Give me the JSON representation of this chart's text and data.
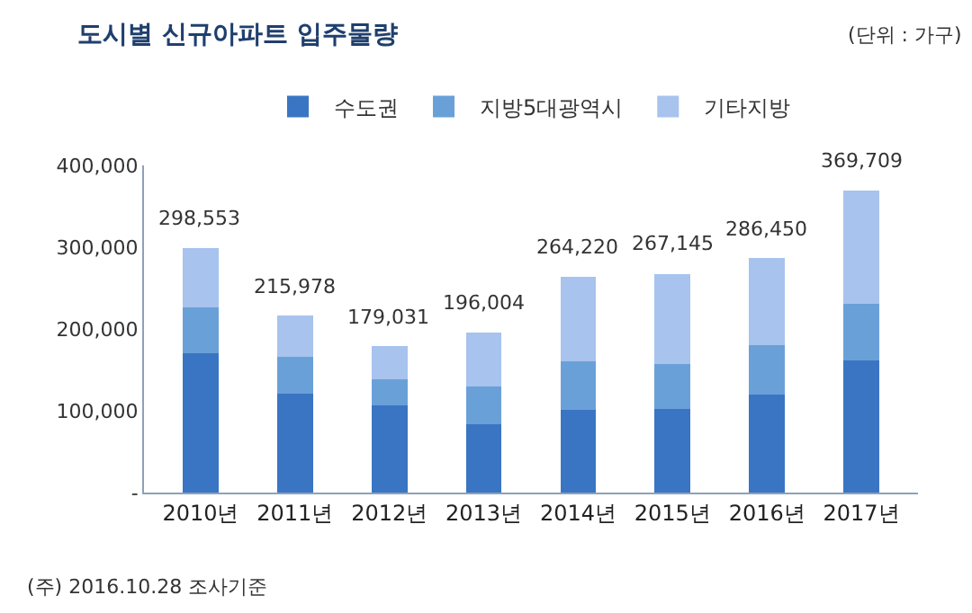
{
  "chart_data": {
    "type": "bar",
    "title": "도시별 신규아파트 입주물량",
    "categories": [
      "2010년",
      "2011년",
      "2012년",
      "2013년",
      "2014년",
      "2015년",
      "2016년",
      "2017년"
    ],
    "stacked": true,
    "series": [
      {
        "name": "수도권",
        "color": "#3a75c4",
        "values": [
          170000,
          121000,
          107000,
          83000,
          101000,
          102000,
          120000,
          162000
        ]
      },
      {
        "name": "지방5대광역시",
        "color": "#6aa0d8",
        "values": [
          56000,
          45000,
          32000,
          47000,
          59000,
          55000,
          60000,
          69000
        ]
      },
      {
        "name": "기타지방",
        "color": "#a7c3ee",
        "values": [
          72553,
          49978,
          40031,
          66004,
          104220,
          110145,
          106450,
          138709
        ]
      }
    ],
    "totals": [
      "298,553",
      "215,978",
      "179,031",
      "196,004",
      "264,220",
      "267,145",
      "286,450",
      "369,709"
    ],
    "ylim": [
      0,
      400000
    ],
    "yticks": [
      {
        "value": 0,
        "label": "-"
      },
      {
        "value": 100000,
        "label": "100,000"
      },
      {
        "value": 200000,
        "label": "200,000"
      },
      {
        "value": 300000,
        "label": "300,000"
      },
      {
        "value": 400000,
        "label": "400,000"
      }
    ],
    "legend": "top",
    "annotations": [
      "(단위 : 가구)",
      "(주) 2016.10.28 조사기준"
    ]
  }
}
